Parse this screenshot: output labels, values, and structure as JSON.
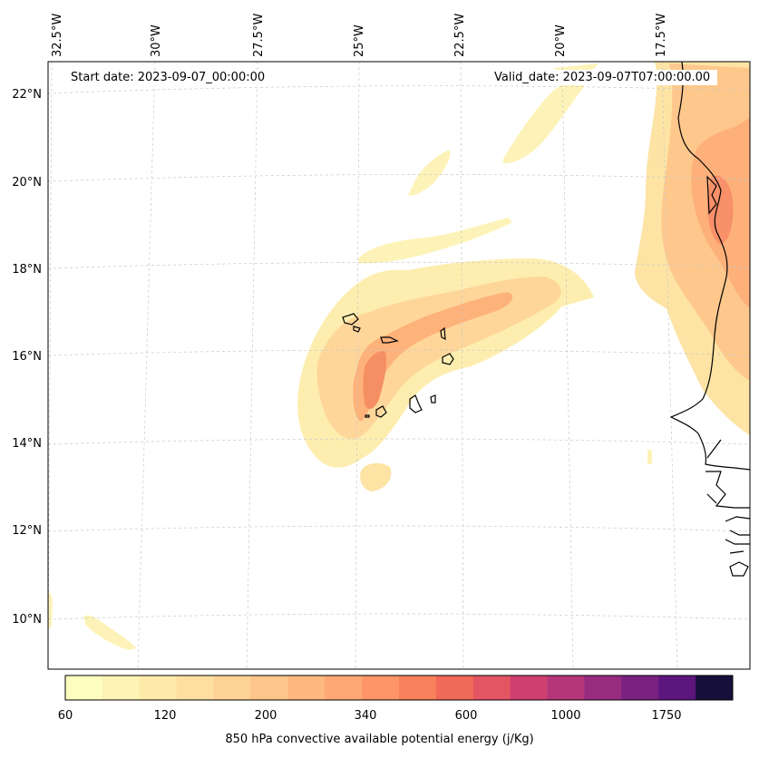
{
  "map": {
    "start_label": "Start date: 2023-09-07_00:00:00",
    "valid_label": "Valid_date: 2023-09-07T07:00:00.00",
    "lon_labels": [
      "32.5°W",
      "30°W",
      "27.5°W",
      "25°W",
      "22.5°W",
      "20°W",
      "17.5°W"
    ],
    "lat_labels": [
      "22°N",
      "20°N",
      "18°N",
      "16°N",
      "14°N",
      "12°N",
      "10°N"
    ],
    "colorbar": {
      "title": "850 hPa convective available potential energy (j/Kg)",
      "tick_labels": [
        "60",
        "120",
        "200",
        "340",
        "600",
        "1000",
        "1750"
      ],
      "colors": [
        "#fcfdbf",
        "#fcf3b5",
        "#fde9aa",
        "#fedf9f",
        "#fed395",
        "#fec68a",
        "#feb87f",
        "#fea874",
        "#fd9567",
        "#f8805c",
        "#f06a57",
        "#e45563",
        "#cf4070",
        "#b5367a",
        "#972c7f",
        "#7a2182",
        "#5c167e",
        "#170f3c"
      ]
    },
    "colors": {
      "land": "#ffffff",
      "coast": "#000000",
      "grid": "#c8c8c8"
    }
  }
}
